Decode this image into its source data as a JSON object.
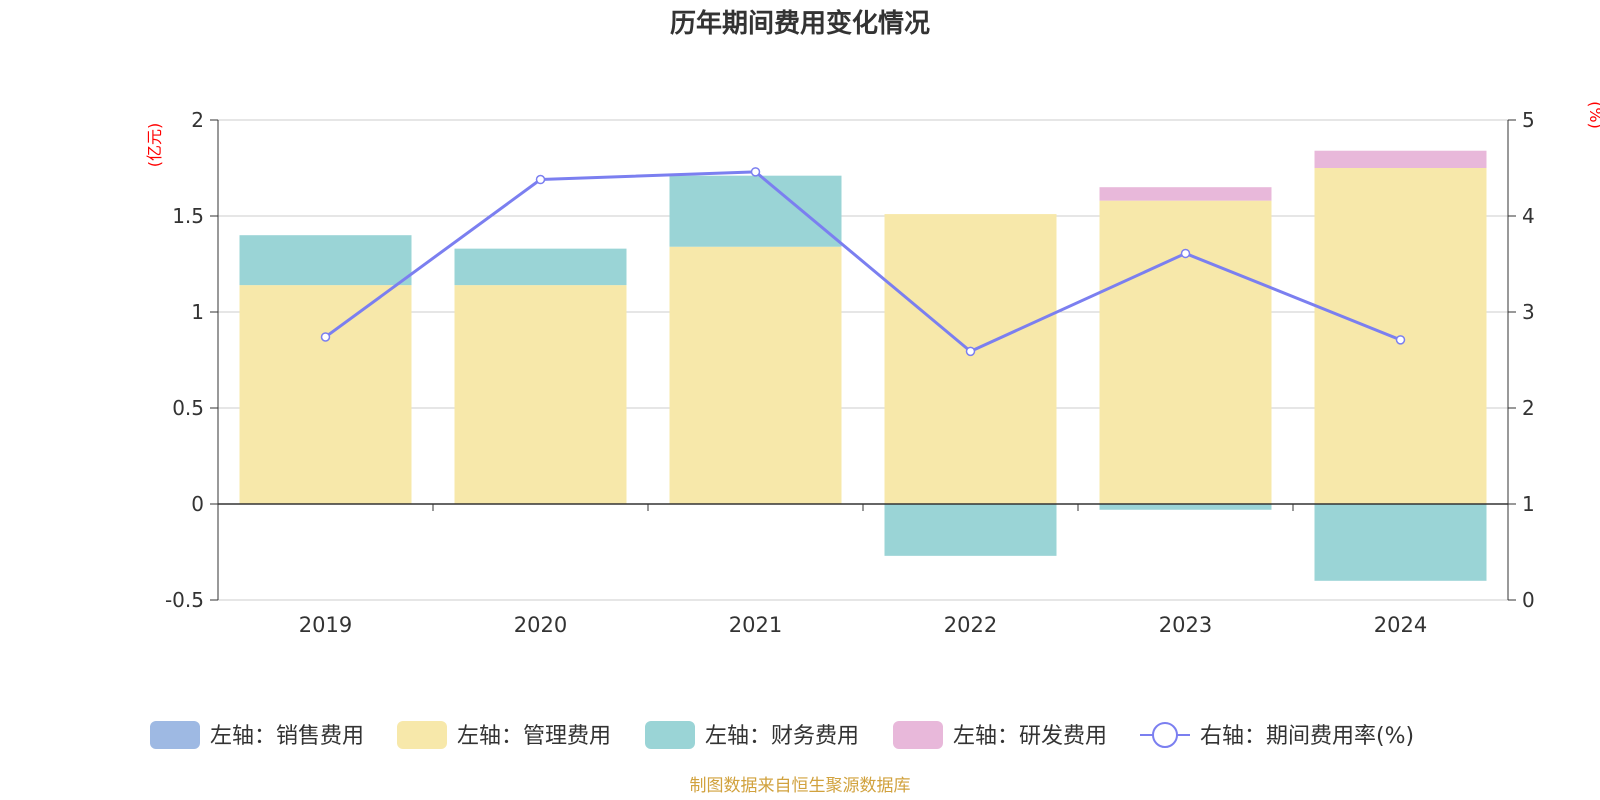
{
  "chart_data": {
    "type": "bar",
    "title": "历年期间费用变化情况",
    "categories": [
      "2019",
      "2020",
      "2021",
      "2022",
      "2023",
      "2024"
    ],
    "left_axis": {
      "unit_label": "(亿元)",
      "ylim": [
        -0.5,
        2
      ],
      "ticks": [
        "-0.5",
        "0",
        "0.5",
        "1",
        "1.5",
        "2"
      ]
    },
    "right_axis": {
      "unit_label": "(%)",
      "ylim": [
        0,
        5
      ],
      "ticks": [
        "0",
        "1",
        "2",
        "3",
        "4",
        "5"
      ]
    },
    "series": [
      {
        "name": "左轴：销售费用",
        "type": "bar",
        "axis": "left",
        "color": "#9eb9e3",
        "values": [
          0,
          0,
          0,
          0,
          0,
          0
        ]
      },
      {
        "name": "左轴：管理费用",
        "type": "bar",
        "axis": "left",
        "color": "#f7e8aa",
        "values": [
          1.14,
          1.14,
          1.34,
          1.51,
          1.58,
          1.75
        ]
      },
      {
        "name": "左轴：财务费用",
        "type": "bar",
        "axis": "left",
        "color": "#9ad4d6",
        "values": [
          0.26,
          0.19,
          0.37,
          -0.27,
          -0.03,
          -0.4
        ]
      },
      {
        "name": "左轴：研发费用",
        "type": "bar",
        "axis": "left",
        "color": "#e8b8da",
        "values": [
          0,
          0,
          0,
          0,
          0.07,
          0.09
        ]
      },
      {
        "name": "右轴：期间费用率(%)",
        "type": "line",
        "axis": "right",
        "color": "#7b7ff0",
        "values": [
          2.74,
          4.38,
          4.46,
          2.59,
          3.61,
          2.71
        ]
      }
    ],
    "legend_position": "bottom",
    "grid": true
  },
  "source": "制图数据来自恒生聚源数据库",
  "colors": {
    "text": "#333333",
    "unit": "#ff0000",
    "source": "#d1a23e",
    "grid": "#cccccc",
    "axis": "#333333"
  }
}
